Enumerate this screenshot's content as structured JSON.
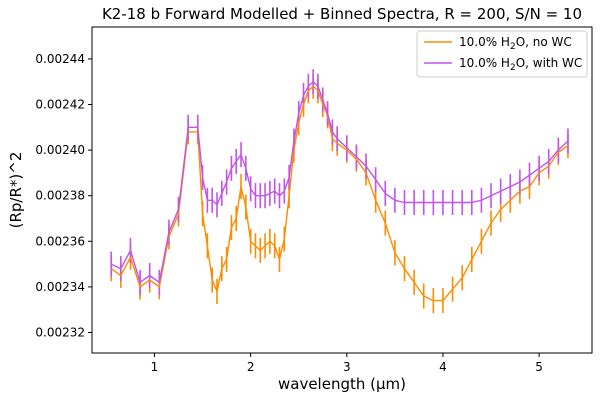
{
  "chart_data": {
    "type": "line",
    "title": "K2-18 b Forward Modelled + Binned Spectra, R = 200, S/N = 10",
    "xlabel": "wavelength (μm)",
    "ylabel": "(Rp/R*)^2",
    "xlim": [
      0.35,
      5.55
    ],
    "ylim": [
      0.002311,
      0.002454
    ],
    "xticks": [
      1,
      2,
      3,
      4,
      5
    ],
    "xtick_labels": [
      "1",
      "2",
      "3",
      "4",
      "5"
    ],
    "yticks": [
      0.00232,
      0.00234,
      0.00236,
      0.00238,
      0.0024,
      0.00242,
      0.00244
    ],
    "ytick_labels": [
      "0.00232",
      "0.00234",
      "0.00236",
      "0.00238",
      "0.00240",
      "0.00242",
      "0.00244"
    ],
    "grid": false,
    "legend_position": "top-right",
    "series": [
      {
        "name": "10.0% H₂O, no WC",
        "label_parts": [
          "10.0% H",
          "2",
          "O, no WC"
        ],
        "color": "#ff8c00",
        "x": [
          0.55,
          0.65,
          0.75,
          0.85,
          0.95,
          1.05,
          1.15,
          1.25,
          1.35,
          1.45,
          1.5,
          1.55,
          1.6,
          1.65,
          1.7,
          1.75,
          1.8,
          1.85,
          1.9,
          1.95,
          2.0,
          2.05,
          2.1,
          2.15,
          2.2,
          2.25,
          2.3,
          2.35,
          2.4,
          2.45,
          2.5,
          2.55,
          2.6,
          2.65,
          2.7,
          2.75,
          2.8,
          2.85,
          2.9,
          3.0,
          3.1,
          3.2,
          3.3,
          3.4,
          3.5,
          3.6,
          3.7,
          3.8,
          3.9,
          4.0,
          4.1,
          4.2,
          4.3,
          4.4,
          4.5,
          4.6,
          4.7,
          4.8,
          4.9,
          5.0,
          5.1,
          5.2,
          5.3
        ],
        "y": [
          0.002348,
          0.002345,
          0.002353,
          0.00234,
          0.002343,
          0.00234,
          0.002362,
          0.002372,
          0.002408,
          0.002408,
          0.002372,
          0.002358,
          0.002343,
          0.002338,
          0.002348,
          0.002352,
          0.002366,
          0.00237,
          0.002384,
          0.002375,
          0.00236,
          0.002358,
          0.002356,
          0.002358,
          0.00236,
          0.002358,
          0.002352,
          0.002361,
          0.00238,
          0.0024,
          0.002412,
          0.00242,
          0.002426,
          0.002428,
          0.002426,
          0.00242,
          0.002415,
          0.002405,
          0.002403,
          0.0024,
          0.002396,
          0.00239,
          0.002378,
          0.002368,
          0.002355,
          0.002348,
          0.002342,
          0.002336,
          0.002334,
          0.002334,
          0.002339,
          0.002344,
          0.002352,
          0.00236,
          0.002368,
          0.002374,
          0.002378,
          0.002382,
          0.002384,
          0.00239,
          0.002393,
          0.002399,
          0.002402
        ],
        "error": 5.5e-06
      },
      {
        "name": "10.0% H₂O, with WC",
        "label_parts": [
          "10.0% H",
          "2",
          "O, with WC"
        ],
        "color": "#bf55ec",
        "x": [
          0.55,
          0.65,
          0.75,
          0.85,
          0.95,
          1.05,
          1.15,
          1.25,
          1.35,
          1.45,
          1.5,
          1.55,
          1.6,
          1.65,
          1.7,
          1.75,
          1.8,
          1.85,
          1.9,
          1.95,
          2.0,
          2.05,
          2.1,
          2.15,
          2.2,
          2.25,
          2.3,
          2.35,
          2.4,
          2.45,
          2.5,
          2.55,
          2.6,
          2.65,
          2.7,
          2.75,
          2.8,
          2.85,
          2.9,
          3.0,
          3.1,
          3.2,
          3.3,
          3.4,
          3.5,
          3.6,
          3.7,
          3.8,
          3.9,
          4.0,
          4.1,
          4.2,
          4.3,
          4.4,
          4.5,
          4.6,
          4.7,
          4.8,
          4.9,
          5.0,
          5.1,
          5.2,
          5.3
        ],
        "y": [
          0.00235,
          0.002348,
          0.002356,
          0.002342,
          0.002345,
          0.002342,
          0.002364,
          0.002374,
          0.00241,
          0.00241,
          0.002388,
          0.002378,
          0.002378,
          0.002376,
          0.002381,
          0.002386,
          0.002392,
          0.002395,
          0.002398,
          0.002392,
          0.002383,
          0.00238,
          0.00238,
          0.00238,
          0.002381,
          0.002382,
          0.00238,
          0.002382,
          0.002388,
          0.002404,
          0.002416,
          0.002424,
          0.002428,
          0.00243,
          0.002428,
          0.002422,
          0.002416,
          0.002408,
          0.002405,
          0.002401,
          0.002397,
          0.002393,
          0.002387,
          0.002381,
          0.002378,
          0.002377,
          0.002377,
          0.002377,
          0.002377,
          0.002377,
          0.002377,
          0.002377,
          0.002377,
          0.002378,
          0.00238,
          0.002382,
          0.002384,
          0.002386,
          0.002389,
          0.002392,
          0.002395,
          0.0024,
          0.002404
        ],
        "error": 5.5e-06
      }
    ]
  }
}
